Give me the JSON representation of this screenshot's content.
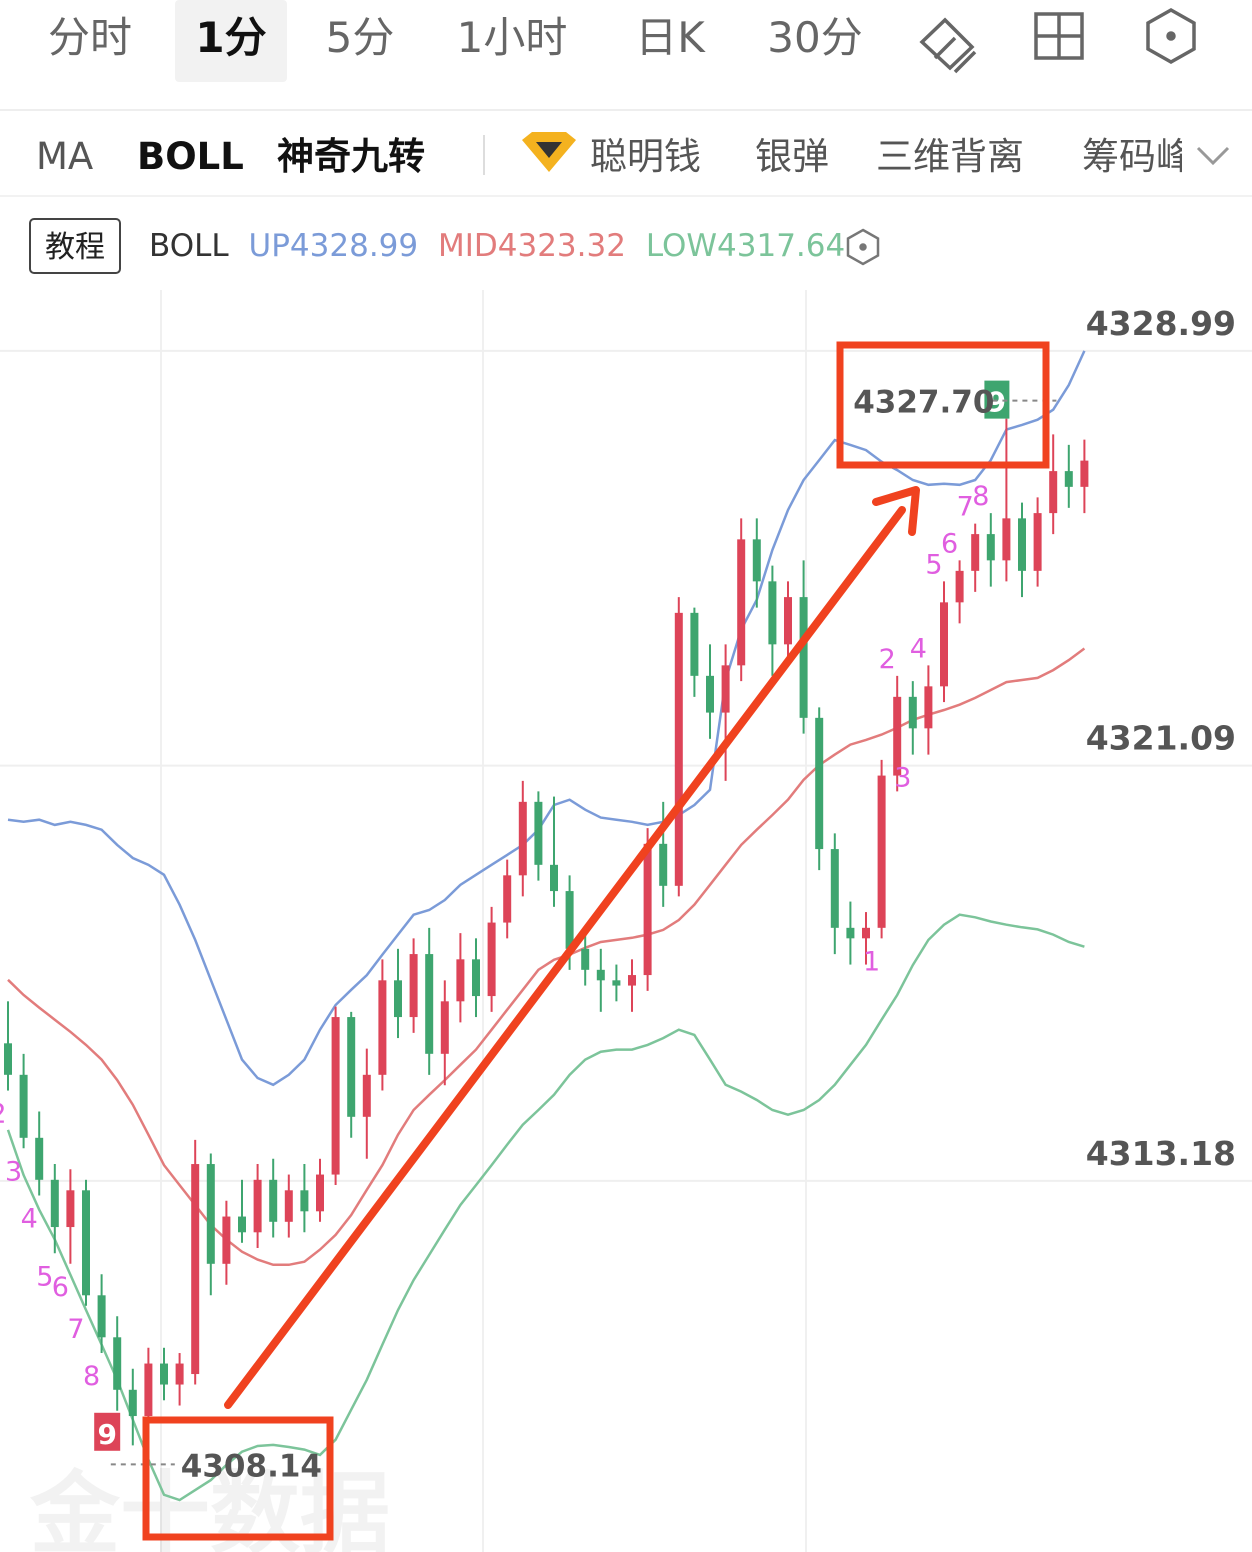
{
  "tabs": [
    "分时",
    "1分",
    "5分",
    "1小时",
    "日K",
    "30分"
  ],
  "indicators": [
    "MA",
    "BOLL",
    "神奇九转",
    "聪明钱",
    "银弹",
    "三维背离",
    "筹码峰"
  ],
  "tutorial_button": "教程",
  "watermark": "金十数据",
  "chart_data": {
    "type": "candlestick",
    "legend_title": "BOLL",
    "up_color": "#dd4458",
    "down_color": "#3ea56f",
    "td_color": "#e05ee0",
    "ylim": [
      4306.11,
      4330.15
    ],
    "yticks": [
      4313.18,
      4321.09,
      4328.99
    ],
    "grid": true,
    "high_label": "4327.70",
    "low_label": "4308.14",
    "open": [
      4315.8,
      4315.2,
      4314.0,
      4313.2,
      4312.3,
      4313.0,
      4311.0,
      4310.2,
      4309.2,
      4308.7,
      4309.7,
      4309.3,
      4309.5,
      4313.5,
      4311.6,
      4312.5,
      4312.2,
      4313.2,
      4312.4,
      4313.0,
      4312.6,
      4313.3,
      4316.3,
      4314.4,
      4315.2,
      4317.0,
      4316.3,
      4317.5,
      4315.6,
      4316.6,
      4317.4,
      4316.7,
      4318.1,
      4319.0,
      4320.4,
      4319.2,
      4318.7,
      4317.6,
      4317.2,
      4317.0,
      4316.9,
      4317.1,
      4319.6,
      4318.8,
      4324.0,
      4322.8,
      4322.1,
      4323.0,
      4325.4,
      4324.6,
      4323.4,
      4324.3,
      4322.0,
      4319.5,
      4318.0,
      4317.8,
      4318.0,
      4320.9,
      4322.4,
      4321.8,
      4322.6,
      4324.2,
      4324.8,
      4325.5,
      4325.0,
      4325.8,
      4324.8,
      4325.9,
      4326.7,
      4326.4
    ],
    "high": [
      4316.6,
      4315.6,
      4314.5,
      4313.5,
      4313.4,
      4313.2,
      4311.4,
      4310.6,
      4309.6,
      4310.0,
      4310.0,
      4309.9,
      4313.96,
      4313.7,
      4312.8,
      4313.2,
      4313.5,
      4313.6,
      4313.3,
      4313.5,
      4313.6,
      4316.5,
      4316.4,
      4315.7,
      4317.4,
      4317.6,
      4317.8,
      4318.0,
      4317.0,
      4317.9,
      4317.8,
      4318.4,
      4319.3,
      4320.8,
      4320.6,
      4320.5,
      4319.0,
      4317.9,
      4317.6,
      4317.3,
      4317.4,
      4319.9,
      4320.4,
      4324.3,
      4324.1,
      4323.4,
      4323.4,
      4325.8,
      4325.8,
      4324.9,
      4324.6,
      4325.0,
      4322.2,
      4319.8,
      4318.5,
      4318.3,
      4321.2,
      4322.8,
      4322.7,
      4323.0,
      4324.6,
      4325.0,
      4325.7,
      4325.9,
      4327.7,
      4326.1,
      4326.2,
      4327.4,
      4327.2,
      4327.3
    ],
    "low": [
      4314.9,
      4313.8,
      4312.9,
      4311.8,
      4311.6,
      4310.8,
      4309.9,
      4308.8,
      4308.14,
      4308.5,
      4309.0,
      4308.9,
      4309.3,
      4311.0,
      4311.2,
      4312.0,
      4311.9,
      4312.1,
      4312.1,
      4312.2,
      4312.4,
      4313.1,
      4314.0,
      4313.6,
      4314.9,
      4315.9,
      4316.0,
      4315.2,
      4315.0,
      4316.2,
      4316.3,
      4316.4,
      4317.8,
      4318.6,
      4318.9,
      4318.4,
      4317.2,
      4316.9,
      4316.4,
      4316.6,
      4316.4,
      4316.8,
      4318.4,
      4318.6,
      4322.4,
      4321.6,
      4320.8,
      4322.7,
      4324.1,
      4322.8,
      4323.0,
      4321.7,
      4319.1,
      4317.5,
      4317.3,
      4317.3,
      4317.8,
      4320.6,
      4321.3,
      4321.3,
      4322.3,
      4323.8,
      4324.4,
      4324.5,
      4324.6,
      4324.3,
      4324.5,
      4325.5,
      4326.0,
      4325.9
    ],
    "close": [
      4315.2,
      4314.0,
      4313.2,
      4312.3,
      4313.0,
      4311.0,
      4310.2,
      4309.2,
      4308.7,
      4309.7,
      4309.3,
      4309.7,
      4313.5,
      4311.6,
      4312.5,
      4312.2,
      4313.2,
      4312.4,
      4313.0,
      4312.6,
      4313.3,
      4316.3,
      4314.4,
      4315.2,
      4317.0,
      4316.3,
      4317.5,
      4315.6,
      4316.6,
      4317.4,
      4316.7,
      4318.1,
      4319.0,
      4320.4,
      4319.2,
      4318.7,
      4317.6,
      4317.2,
      4317.0,
      4316.9,
      4317.1,
      4319.6,
      4318.8,
      4324.0,
      4322.8,
      4322.1,
      4323.0,
      4325.4,
      4324.6,
      4323.4,
      4324.3,
      4322.0,
      4319.5,
      4318.0,
      4317.8,
      4318.0,
      4320.9,
      4322.4,
      4321.8,
      4322.6,
      4324.2,
      4324.8,
      4325.5,
      4325.0,
      4325.8,
      4324.8,
      4325.9,
      4326.7,
      4326.4,
      4326.9
    ],
    "td_counts": [
      2,
      3,
      4,
      5,
      6,
      7,
      8,
      9,
      null,
      null,
      null,
      null,
      null,
      null,
      null,
      null,
      null,
      null,
      null,
      null,
      null,
      null,
      null,
      null,
      null,
      null,
      null,
      null,
      null,
      null,
      null,
      null,
      null,
      null,
      null,
      null,
      null,
      null,
      null,
      null,
      null,
      null,
      null,
      null,
      null,
      null,
      null,
      null,
      null,
      null,
      null,
      null,
      null,
      null,
      null,
      null,
      1,
      2,
      3,
      4,
      5,
      6,
      7,
      8,
      9,
      null,
      null,
      null,
      null,
      null
    ],
    "series": [
      {
        "name": "UP",
        "color": "#7b9bd8",
        "values": [
          4320.06,
          4320.02,
          4320.06,
          4319.96,
          4320.02,
          4319.96,
          4319.87,
          4319.58,
          4319.33,
          4319.2,
          4319.01,
          4318.44,
          4317.77,
          4317.01,
          4316.25,
          4315.49,
          4315.14,
          4315.01,
          4315.2,
          4315.49,
          4316.06,
          4316.53,
          4316.82,
          4317.1,
          4317.49,
          4317.87,
          4318.25,
          4318.34,
          4318.53,
          4318.82,
          4319.01,
          4319.2,
          4319.39,
          4319.58,
          4319.87,
          4320.34,
          4320.44,
          4320.25,
          4320.1,
          4320.06,
          4320.02,
          4319.96,
          4320.02,
          4320.15,
          4320.34,
          4320.63,
          4322.72,
          4323.68,
          4324.25,
          4325.2,
          4325.96,
          4326.53,
          4326.91,
          4327.29,
          4327.2,
          4327.1,
          4326.88,
          4326.72,
          4326.53,
          4326.44,
          4326.46,
          4326.44,
          4326.53,
          4326.91,
          4327.49,
          4327.58,
          4327.68,
          4327.87,
          4328.34,
          4328.99
        ]
      },
      {
        "name": "MID",
        "color": "#e27c7c",
        "values": [
          4317.01,
          4316.72,
          4316.48,
          4316.25,
          4316.02,
          4315.77,
          4315.49,
          4315.1,
          4314.63,
          4314.06,
          4313.48,
          4313.1,
          4312.72,
          4312.34,
          4312.06,
          4311.83,
          4311.68,
          4311.58,
          4311.58,
          4311.64,
          4311.87,
          4312.15,
          4312.53,
          4313.01,
          4313.48,
          4314.06,
          4314.53,
          4314.82,
          4315.1,
          4315.39,
          4315.68,
          4316.06,
          4316.44,
          4316.82,
          4317.2,
          4317.39,
          4317.49,
          4317.62,
          4317.73,
          4317.77,
          4317.81,
          4317.87,
          4317.96,
          4318.15,
          4318.44,
          4318.82,
          4319.2,
          4319.58,
          4319.87,
          4320.15,
          4320.44,
          4320.82,
          4321.1,
          4321.3,
          4321.49,
          4321.58,
          4321.68,
          4321.81,
          4321.96,
          4322.06,
          4322.15,
          4322.25,
          4322.38,
          4322.53,
          4322.68,
          4322.72,
          4322.76,
          4322.91,
          4323.1,
          4323.32
        ]
      },
      {
        "name": "LOW",
        "color": "#7cc49a",
        "values": [
          4314.15,
          4313.29,
          4312.63,
          4312.06,
          4311.39,
          4310.72,
          4310.06,
          4309.39,
          4308.63,
          4307.87,
          4307.2,
          4307.1,
          4307.29,
          4307.48,
          4307.77,
          4308.02,
          4308.13,
          4308.15,
          4308.11,
          4308.06,
          4307.96,
          4308.25,
          4308.82,
          4309.39,
          4310.06,
          4310.72,
          4311.29,
          4311.77,
          4312.25,
          4312.72,
          4313.1,
          4313.48,
          4313.87,
          4314.25,
          4314.53,
          4314.82,
          4315.2,
          4315.49,
          4315.64,
          4315.68,
          4315.68,
          4315.77,
          4315.9,
          4316.06,
          4315.96,
          4315.49,
          4315.01,
          4314.88,
          4314.72,
          4314.53,
          4314.44,
          4314.53,
          4314.72,
          4315.01,
          4315.39,
          4315.77,
          4316.25,
          4316.72,
          4317.29,
          4317.77,
          4318.06,
          4318.25,
          4318.2,
          4318.12,
          4318.06,
          4318.01,
          4317.97,
          4317.87,
          4317.73,
          4317.64
        ]
      }
    ]
  }
}
